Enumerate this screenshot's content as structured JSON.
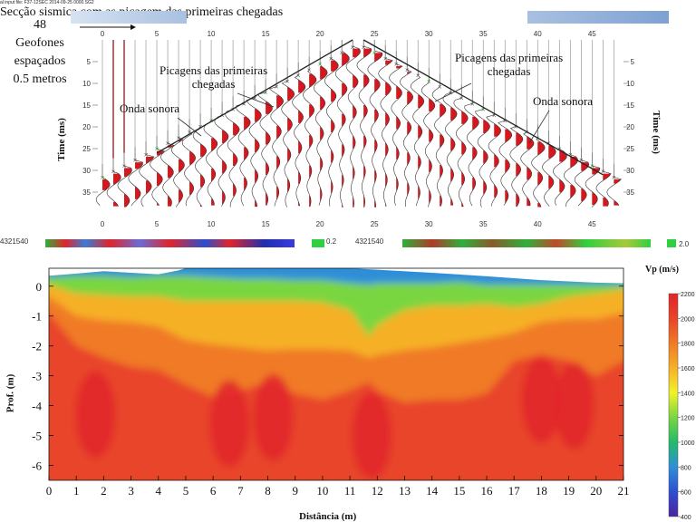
{
  "chart_data": [
    {
      "type": "seismic_section",
      "title": "Secção sismica com as picagem das primeiras chegadas",
      "input_file_label": "al input file: F37-12SEC 2014-09-25 0000.SG2",
      "geophone_info": [
        "48",
        "Geofones",
        "espaçados",
        "0.5 metros"
      ],
      "x_ticks": [
        0,
        5,
        10,
        15,
        20,
        25,
        30,
        35,
        40,
        45
      ],
      "xlim": [
        -1,
        48
      ],
      "ylabel_left": "Time (ms)",
      "ylabel_right": "Time (ms)",
      "y_ticks": [
        5,
        10,
        15,
        20,
        25,
        30,
        35
      ],
      "ylim": [
        0,
        40
      ],
      "annotations": [
        {
          "text_lines": [
            "Picagens das primeiras",
            "chegadas"
          ],
          "side": "left"
        },
        {
          "text_lines": [
            "Picagens das primeiras",
            "chegadas"
          ],
          "side": "right"
        },
        {
          "text_lines": [
            "Onda sonora"
          ],
          "side": "left"
        },
        {
          "text_lines": [
            "Onda sonora"
          ],
          "side": "right"
        }
      ],
      "source_trace": 23.5,
      "direct_wave_lines": [
        {
          "from": [
            5,
            26
          ],
          "to": [
            23,
            0
          ]
        },
        {
          "from": [
            24,
            0
          ],
          "to": [
            46,
            31
          ]
        }
      ]
    },
    {
      "type": "heatmap",
      "title": "",
      "xlabel": "Distância (m)",
      "ylabel": "Prof. (m)",
      "xlim": [
        0,
        21
      ],
      "ylim": [
        -6.5,
        0.6
      ],
      "x_ticks": [
        0,
        1,
        2,
        3,
        4,
        5,
        6,
        7,
        8,
        9,
        10,
        11,
        12,
        13,
        14,
        15,
        16,
        17,
        18,
        19,
        20,
        21
      ],
      "y_ticks": [
        0,
        -1,
        -2,
        -3,
        -4,
        -5,
        -6
      ],
      "surface_profile": [
        [
          0,
          0.35
        ],
        [
          1,
          0.42
        ],
        [
          2,
          0.5
        ],
        [
          3,
          0.45
        ],
        [
          4,
          0.4
        ],
        [
          4.7,
          0.52
        ],
        [
          5,
          0.6
        ],
        [
          7,
          0.6
        ],
        [
          9,
          0.6
        ],
        [
          11,
          0.6
        ],
        [
          12,
          0.55
        ],
        [
          14,
          0.45
        ],
        [
          16,
          0.33
        ],
        [
          18,
          0.2
        ],
        [
          20,
          0.12
        ],
        [
          21,
          0.1
        ]
      ],
      "velocity_boundaries": {
        "x": [
          0,
          1,
          2,
          3,
          4,
          5,
          6,
          7,
          8,
          9,
          10,
          11,
          11.7,
          12,
          13,
          14,
          15,
          16,
          17,
          18,
          19,
          20,
          21
        ],
        "v800": [
          0.3,
          0.35,
          0.35,
          0.3,
          0.35,
          0.35,
          0.3,
          0.25,
          0.25,
          0.2,
          0.2,
          0.1,
          0.05,
          0.1,
          0.1,
          0.1,
          0.15,
          0.05,
          0.05,
          0.05,
          0.05,
          0.05,
          0.05
        ],
        "v1200": [
          0.05,
          -0.25,
          -0.3,
          -0.35,
          -0.35,
          -0.5,
          -0.5,
          -0.5,
          -0.5,
          -0.5,
          -0.55,
          -0.8,
          -1.7,
          -1.3,
          -0.8,
          -0.65,
          -0.65,
          -0.6,
          -0.7,
          -0.6,
          -0.35,
          -0.25,
          -0.1
        ],
        "v1600": [
          -0.35,
          -1.0,
          -1.15,
          -1.2,
          -1.35,
          -1.8,
          -1.95,
          -2.05,
          -2.15,
          -2.1,
          -2.1,
          -2.15,
          -2.4,
          -2.3,
          -2.15,
          -2.05,
          -1.9,
          -1.75,
          -1.55,
          -1.2,
          -1.1,
          -1.1,
          -0.9
        ],
        "v2000": [
          -0.9,
          -2.0,
          -2.4,
          -2.7,
          -2.8,
          -3.3,
          -3.7,
          -3.5,
          -3.2,
          -3.6,
          -3.8,
          -3.5,
          -3.2,
          -3.5,
          -3.9,
          -3.8,
          -3.8,
          -3.6,
          -2.5,
          -2.3,
          -2.5,
          -3.0,
          -2.5
        ]
      },
      "high_velocity_zones": [
        {
          "x": 1.7,
          "y": -4.3
        },
        {
          "x": 6.6,
          "y": -4.6
        },
        {
          "x": 8.2,
          "y": -4.4
        },
        {
          "x": 11.8,
          "y": -5.0
        },
        {
          "x": 18.0,
          "y": -3.8
        },
        {
          "x": 19.2,
          "y": -4.0
        }
      ],
      "colorbar": {
        "label": "Vp (m/s)",
        "min": 400,
        "max": 2200,
        "ticks": [
          2200,
          2000,
          1800,
          1600,
          1400,
          1200,
          1000,
          800,
          600,
          400
        ],
        "colors": [
          "#4a23a0",
          "#2f4fd0",
          "#2f8fd8",
          "#22bb6a",
          "#7ad640",
          "#f2f22a",
          "#f6b027",
          "#f07a25",
          "#e8452a",
          "#e0242b"
        ]
      }
    }
  ],
  "strip": {
    "left_coord": "4321540",
    "right_coord": "4321540",
    "legend_a": "0.2",
    "legend_b": "2.0"
  }
}
